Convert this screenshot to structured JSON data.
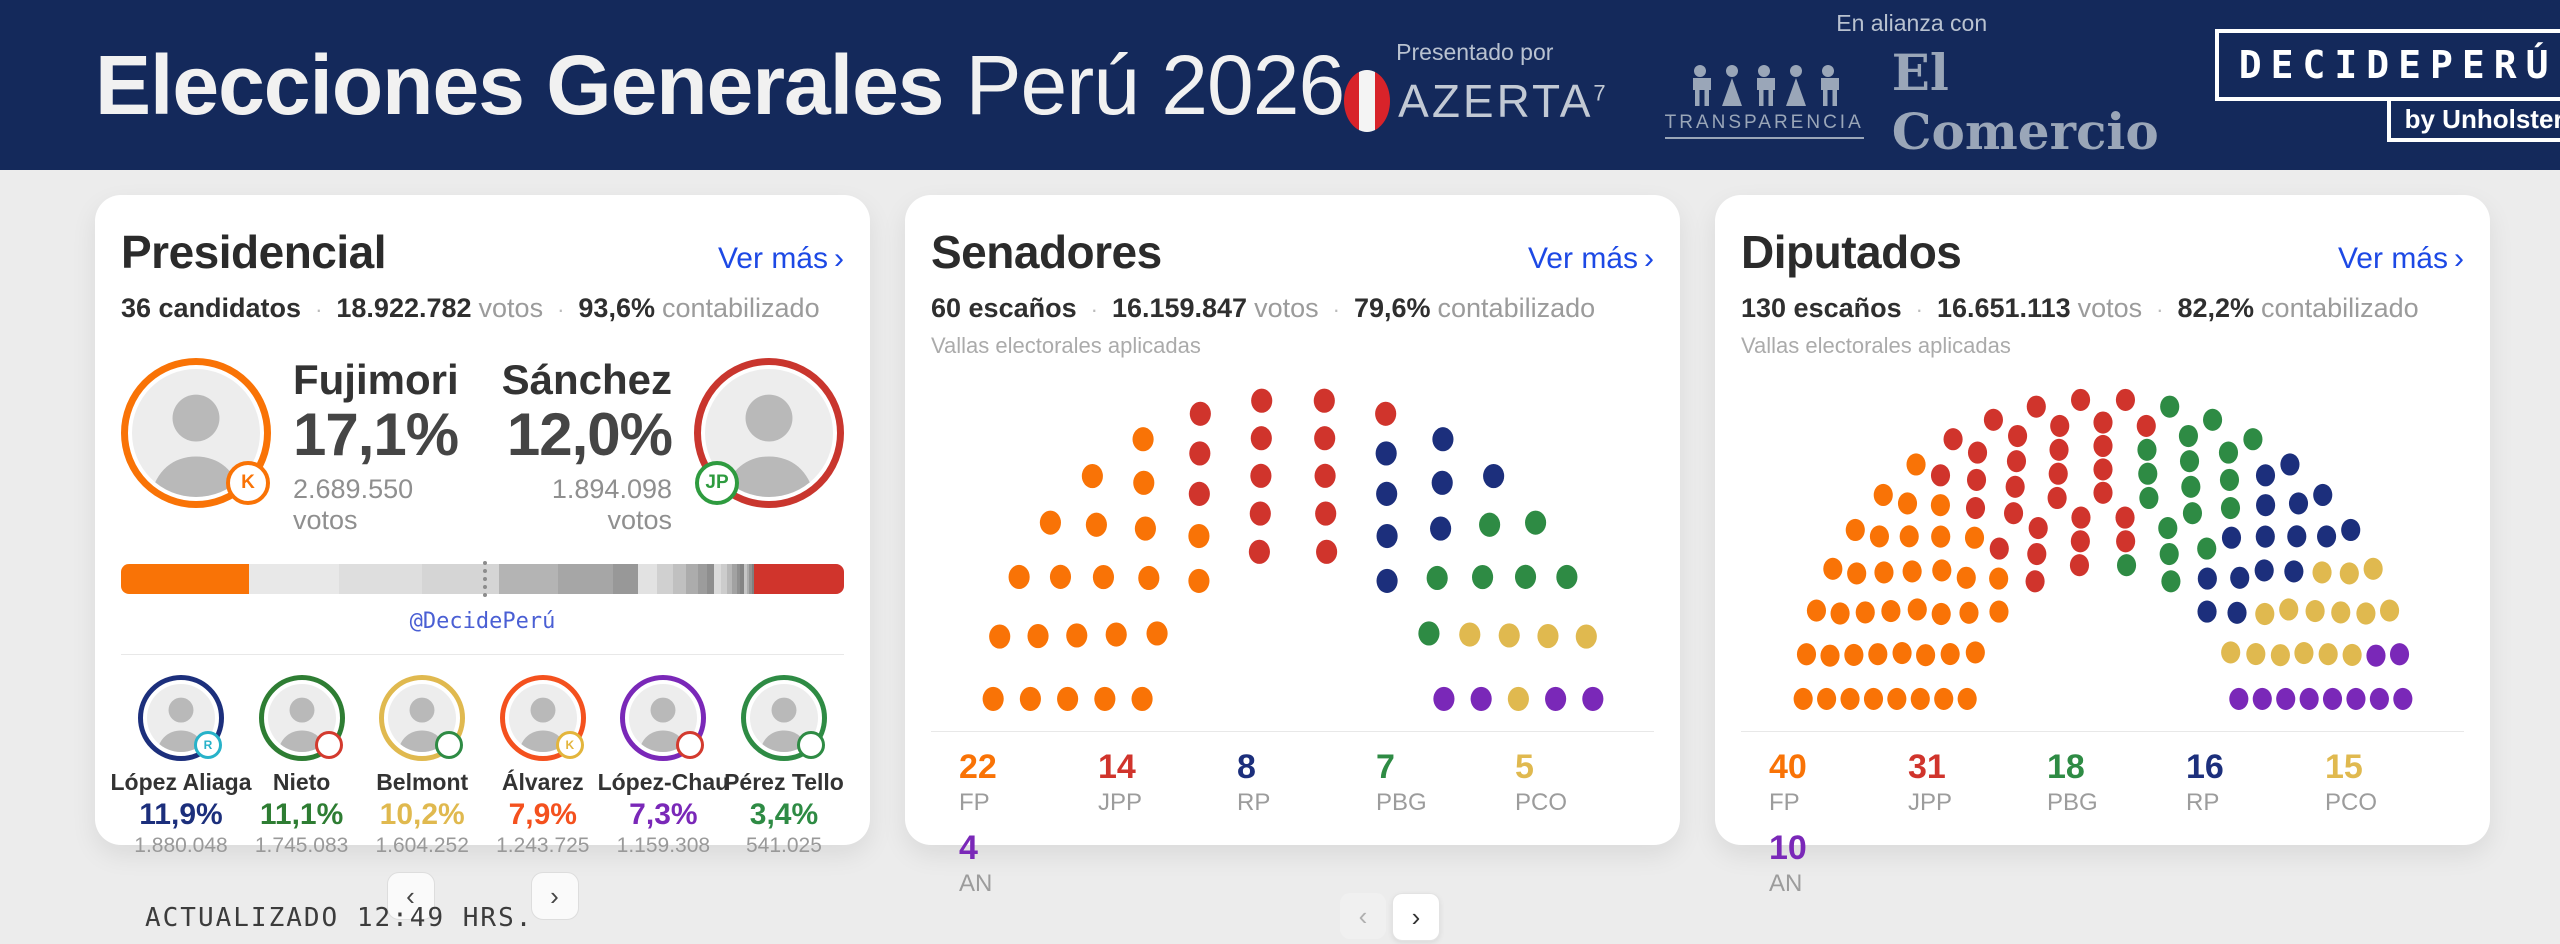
{
  "ui": {
    "ver_mas": "Ver más",
    "chevron_right": "›",
    "chevron_left": "‹",
    "sep": "·"
  },
  "header": {
    "title_bold": "Elecciones Generales",
    "title_regular": "Perú 2026",
    "presented_by_label": "Presentado por",
    "azerta": "AZERTA",
    "azerta_sup": "7",
    "alliance_label": "En alianza con",
    "transparencia": "TRANSPARENCIA",
    "el_comercio": "El Comercio",
    "decideperu": "DECIDEPERÚ",
    "by_unholster": "by Unholster"
  },
  "presidencial": {
    "title": "Presidencial",
    "stats": [
      {
        "strong": "36 candidatos"
      },
      {
        "strong": "18.922.782",
        "light": "votos"
      },
      {
        "strong": "93,6%",
        "light": "contabilizado"
      }
    ],
    "featured": [
      {
        "name": "Fujimori",
        "pct": "17,1%",
        "votes": "2.689.550 votos",
        "ring_color": "#F97306",
        "badge": "K",
        "badge_color": "#F97306"
      },
      {
        "name": "Sánchez",
        "pct": "12,0%",
        "votes": "1.894.098 votos",
        "ring_color": "#C9362E",
        "badge": "JP",
        "badge_color": "#2E9B3F"
      }
    ],
    "bar": {
      "watermark": "@DecidePerú",
      "segments": [
        {
          "value": 17.1,
          "color": "#F97306"
        },
        {
          "value": 11.9,
          "color": "#E8E8E8"
        },
        {
          "value": 11.1,
          "color": "#DEDEDE"
        },
        {
          "value": 10.2,
          "color": "#D5D5D5"
        },
        {
          "value": 7.9,
          "color": "#B4B4B4"
        },
        {
          "value": 7.3,
          "color": "#A6A6A6"
        },
        {
          "value": 3.4,
          "color": "#989898"
        },
        {
          "value": 2.5,
          "color": "#E2E2E2"
        },
        {
          "value": 2.1,
          "color": "#D0D0D0"
        },
        {
          "value": 1.8,
          "color": "#C0C0C0"
        },
        {
          "value": 1.5,
          "color": "#ACACAC"
        },
        {
          "value": 1.2,
          "color": "#9C9C9C"
        },
        {
          "value": 1.0,
          "color": "#8E8E8E"
        },
        {
          "value": 0.9,
          "color": "#DBDBDB"
        },
        {
          "value": 0.8,
          "color": "#CCCCCC"
        },
        {
          "value": 0.7,
          "color": "#B8B8B8"
        },
        {
          "value": 0.6,
          "color": "#A2A2A2"
        },
        {
          "value": 0.5,
          "color": "#909090"
        },
        {
          "value": 0.45,
          "color": "#848484"
        },
        {
          "value": 0.4,
          "color": "#C6C6C6"
        },
        {
          "value": 0.35,
          "color": "#ADADAD"
        },
        {
          "value": 0.3,
          "color": "#939393"
        },
        {
          "value": 0.3,
          "color": "#7F7F7F"
        },
        {
          "value": 12.0,
          "color": "#D0342C"
        }
      ]
    },
    "candidates": [
      {
        "name": "López Aliaga",
        "pct": "11,9%",
        "votes": "1.880.048",
        "color": "#1C2F7C",
        "badge": "R",
        "badge_color": "#27B2C9"
      },
      {
        "name": "Nieto",
        "pct": "11,1%",
        "votes": "1.745.083",
        "color": "#2E7D33",
        "badge": "",
        "badge_color": "#D33A2E"
      },
      {
        "name": "Belmont",
        "pct": "10,2%",
        "votes": "1.604.252",
        "color": "#E0B94F",
        "badge": "",
        "badge_color": "#2E8B44"
      },
      {
        "name": "Álvarez",
        "pct": "7,9%",
        "votes": "1.243.725",
        "color": "#F4511E",
        "badge": "K",
        "badge_color": "#E3B53C"
      },
      {
        "name": "López-Chau",
        "pct": "7,3%",
        "votes": "1.159.308",
        "color": "#7A28B8",
        "badge": "",
        "badge_color": "#D33A2E"
      },
      {
        "name": "Pérez Tello",
        "pct": "3,4%",
        "votes": "541.025",
        "color": "#2E8B44",
        "badge": "",
        "badge_color": "#2E8B44"
      }
    ]
  },
  "senadores": {
    "title": "Senadores",
    "stats": [
      {
        "strong": "60 escaños"
      },
      {
        "strong": "16.159.847",
        "light": "votos"
      },
      {
        "strong": "79,6%",
        "light": "contabilizado"
      }
    ],
    "note": "Vallas electorales aplicadas",
    "layout_rows": 5,
    "parties": [
      {
        "abbr": "FP",
        "seats": 22,
        "color": "#F97306"
      },
      {
        "abbr": "JPP",
        "seats": 14,
        "color": "#D0342C"
      },
      {
        "abbr": "RP",
        "seats": 8,
        "color": "#1C2F7C"
      },
      {
        "abbr": "PBG",
        "seats": 7,
        "color": "#2E8B44"
      },
      {
        "abbr": "PCO",
        "seats": 5,
        "color": "#E0B94F"
      },
      {
        "abbr": "AN",
        "seats": 4,
        "color": "#7A28B8"
      }
    ]
  },
  "diputados": {
    "title": "Diputados",
    "stats": [
      {
        "strong": "130 escaños"
      },
      {
        "strong": "16.651.113",
        "light": "votos"
      },
      {
        "strong": "82,2%",
        "light": "contabilizado"
      }
    ],
    "note": "Vallas electorales aplicadas",
    "layout_rows": 8,
    "parties": [
      {
        "abbr": "FP",
        "seats": 40,
        "color": "#F97306"
      },
      {
        "abbr": "JPP",
        "seats": 31,
        "color": "#D0342C"
      },
      {
        "abbr": "PBG",
        "seats": 18,
        "color": "#2E8B44"
      },
      {
        "abbr": "RP",
        "seats": 16,
        "color": "#1C2F7C"
      },
      {
        "abbr": "PCO",
        "seats": 15,
        "color": "#E0B94F"
      },
      {
        "abbr": "AN",
        "seats": 10,
        "color": "#7A28B8"
      }
    ]
  },
  "footer": {
    "updated": "ACTUALIZADO 12:49 HRS."
  },
  "chart_data": [
    {
      "type": "parliament",
      "title": "Senadores",
      "total_seats": 60,
      "series": [
        {
          "name": "FP",
          "value": 22
        },
        {
          "name": "JPP",
          "value": 14
        },
        {
          "name": "RP",
          "value": 8
        },
        {
          "name": "PBG",
          "value": 7
        },
        {
          "name": "PCO",
          "value": 5
        },
        {
          "name": "AN",
          "value": 4
        }
      ]
    },
    {
      "type": "parliament",
      "title": "Diputados",
      "total_seats": 130,
      "series": [
        {
          "name": "FP",
          "value": 40
        },
        {
          "name": "JPP",
          "value": 31
        },
        {
          "name": "PBG",
          "value": 18
        },
        {
          "name": "RP",
          "value": 16
        },
        {
          "name": "PCO",
          "value": 15
        },
        {
          "name": "AN",
          "value": 10
        }
      ]
    },
    {
      "type": "bar",
      "title": "Presidencial",
      "categories": [
        "Fujimori",
        "López Aliaga",
        "Nieto",
        "Belmont",
        "Álvarez",
        "López-Chau",
        "Pérez Tello",
        "Sánchez"
      ],
      "values": [
        17.1,
        11.9,
        11.1,
        10.2,
        7.9,
        7.3,
        3.4,
        12.0
      ]
    }
  ]
}
